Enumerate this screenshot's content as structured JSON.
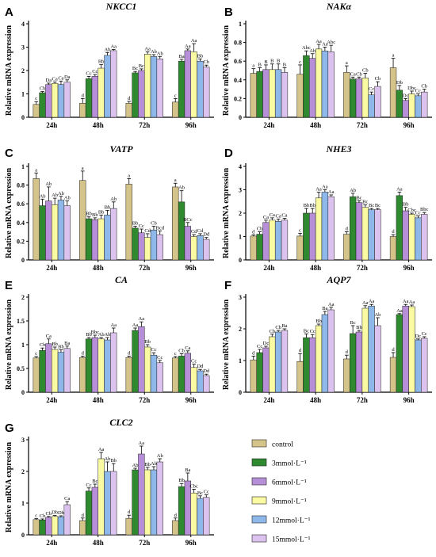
{
  "legend": {
    "items": [
      {
        "label": "control",
        "color": "#d4c48a"
      },
      {
        "label": "3mmol·L⁻¹",
        "color": "#2f8a2f"
      },
      {
        "label": "6mmol·L⁻¹",
        "color": "#b78fd8"
      },
      {
        "label": "9mmol·L⁻¹",
        "color": "#fafaa2"
      },
      {
        "label": "12mmol·L⁻¹",
        "color": "#8fb8ea"
      },
      {
        "label": "15mmol·L⁻¹",
        "color": "#dcc2ee"
      }
    ]
  },
  "chart_data": [
    {
      "panel": "A",
      "type": "bar",
      "title": "NKCC1",
      "ylabel": "Relative mRNA expression",
      "categories": [
        "24h",
        "48h",
        "72h",
        "96h"
      ],
      "ylim": [
        0,
        4
      ],
      "yticks": [
        0,
        1,
        2,
        3,
        4
      ],
      "series": [
        {
          "values": [
            0.55,
            0.6,
            0.6,
            0.65
          ],
          "errors": [
            0.12,
            0.2,
            0.08,
            0.15
          ],
          "labels": [
            "c",
            "d",
            "d",
            "c"
          ]
        },
        {
          "values": [
            1.05,
            1.65,
            1.9,
            2.4
          ],
          "errors": [
            0.05,
            0.1,
            0.06,
            0.08
          ],
          "labels": [
            "Cb",
            "Cc",
            "Bc",
            "Ba"
          ]
        },
        {
          "values": [
            1.4,
            1.75,
            2.0,
            2.85
          ],
          "errors": [
            0.06,
            0.08,
            0.07,
            0.07
          ],
          "labels": [
            "Da",
            "Cc",
            "Bc",
            "Aa"
          ]
        },
        {
          "values": [
            1.45,
            2.1,
            2.7,
            2.8
          ],
          "errors": [
            0.06,
            0.15,
            0.1,
            0.35
          ],
          "labels": [
            "Ca",
            "Bb",
            "Aa",
            "Aa"
          ]
        },
        {
          "values": [
            1.4,
            2.65,
            2.6,
            2.4
          ],
          "errors": [
            0.15,
            0.12,
            0.08,
            0.1
          ],
          "labels": [
            "Ca",
            "Ab",
            "Ab",
            "Bb"
          ]
        },
        {
          "values": [
            1.5,
            2.85,
            2.5,
            2.15
          ],
          "errors": [
            0.1,
            0.05,
            0.1,
            0.08
          ],
          "labels": [
            "Da",
            "Aa",
            "Ab",
            "Cb"
          ]
        }
      ]
    },
    {
      "panel": "B",
      "type": "bar",
      "title": "NAKα",
      "ylabel": "Relative mRNA expression",
      "categories": [
        "24h",
        "48h",
        "72h",
        "96h"
      ],
      "ylim": [
        0,
        1
      ],
      "yticks": [
        0,
        0.2,
        0.4,
        0.6,
        0.8,
        1.0
      ],
      "series": [
        {
          "values": [
            0.47,
            0.46,
            0.48,
            0.53
          ],
          "errors": [
            0.05,
            0.1,
            0.07,
            0.1
          ],
          "labels": [
            "a",
            "c",
            "a",
            "a"
          ]
        },
        {
          "values": [
            0.49,
            0.66,
            0.41,
            0.29
          ],
          "errors": [
            0.04,
            0.05,
            0.02,
            0.05
          ],
          "labels": [
            "B",
            "Abc",
            "Ca",
            "Db"
          ]
        },
        {
          "values": [
            0.51,
            0.63,
            0.41,
            0.18
          ],
          "errors": [
            0.05,
            0.05,
            0.02,
            0.02
          ],
          "labels": [
            "B",
            "Ab",
            "Cb",
            "Dc"
          ]
        },
        {
          "values": [
            0.51,
            0.73,
            0.42,
            0.25
          ],
          "errors": [
            0.06,
            0.05,
            0.05,
            0.03
          ],
          "labels": [
            "B",
            "Aa",
            "Cb",
            "Dbc"
          ]
        },
        {
          "values": [
            0.51,
            0.71,
            0.24,
            0.23
          ],
          "errors": [
            0.06,
            0.04,
            0.03,
            0.02
          ],
          "labels": [
            "B",
            "Aa",
            "Cc",
            "Cc"
          ]
        },
        {
          "values": [
            0.48,
            0.7,
            0.33,
            0.27
          ],
          "errors": [
            0.05,
            0.07,
            0.05,
            0.03
          ],
          "labels": [
            "B",
            "Abc",
            "Cb",
            "Cb"
          ]
        }
      ]
    },
    {
      "panel": "C",
      "type": "bar",
      "title": "VATP",
      "ylabel": "Relative mRNA expression",
      "categories": [
        "24h",
        "48h",
        "72h",
        "96h"
      ],
      "ylim": [
        0,
        1
      ],
      "yticks": [
        0,
        0.2,
        0.4,
        0.6,
        0.8,
        1.0
      ],
      "series": [
        {
          "values": [
            0.87,
            0.85,
            0.81,
            0.78
          ],
          "errors": [
            0.06,
            0.1,
            0.06,
            0.04
          ],
          "labels": [
            "a",
            "a",
            "a",
            "a"
          ]
        },
        {
          "values": [
            0.58,
            0.44,
            0.34,
            0.62
          ],
          "errors": [
            0.07,
            0.02,
            0.02,
            0.12
          ],
          "labels": [
            "Ab",
            "Bb",
            "Bb",
            "Ab"
          ]
        },
        {
          "values": [
            0.63,
            0.43,
            0.29,
            0.36
          ],
          "errors": [
            0.15,
            0.02,
            0.04,
            0.04
          ],
          "labels": [
            "Ab",
            "Bb",
            "Cc",
            "BCc"
          ]
        },
        {
          "values": [
            0.59,
            0.44,
            0.24,
            0.25
          ],
          "errors": [
            0.07,
            0.04,
            0.04,
            0.02
          ],
          "labels": [
            "Ab",
            "Bb",
            "Cd",
            "Cd"
          ]
        },
        {
          "values": [
            0.64,
            0.48,
            0.32,
            0.26
          ],
          "errors": [
            0.04,
            0.05,
            0.04,
            0.02
          ],
          "labels": [
            "Ab",
            "Bb",
            "Cb",
            "Cd"
          ]
        },
        {
          "values": [
            0.58,
            0.55,
            0.27,
            0.22
          ],
          "errors": [
            0.05,
            0.07,
            0.04,
            0.02
          ],
          "labels": [
            "Ab",
            "Ab",
            "Bcd",
            "Dd"
          ]
        }
      ]
    },
    {
      "panel": "D",
      "type": "bar",
      "title": "NHE3",
      "ylabel": "Relative mRNA expression",
      "categories": [
        "24h",
        "48h",
        "72h",
        "96h"
      ],
      "ylim": [
        0,
        4
      ],
      "yticks": [
        0,
        1,
        2,
        3,
        4
      ],
      "series": [
        {
          "values": [
            1.02,
            1.02,
            1.1,
            1.0
          ],
          "errors": [
            0.05,
            0.12,
            0.1,
            0.08
          ],
          "labels": [
            "d",
            "c",
            "d",
            "d"
          ]
        },
        {
          "values": [
            1.1,
            2.0,
            2.7,
            2.75
          ],
          "errors": [
            0.1,
            0.2,
            0.15,
            0.15
          ],
          "labels": [
            "Cb",
            "Bb",
            "Ab",
            "Aa"
          ]
        },
        {
          "values": [
            1.6,
            2.0,
            2.45,
            2.1
          ],
          "errors": [
            0.1,
            0.2,
            0.08,
            0.15
          ],
          "labels": [
            "Ca",
            "Bb",
            "Bc",
            "Bb"
          ]
        },
        {
          "values": [
            1.7,
            2.65,
            2.25,
            1.95
          ],
          "errors": [
            0.1,
            0.25,
            0.1,
            0.05
          ],
          "labels": [
            "Ca",
            "Aa",
            "Bc",
            "Cbc"
          ]
        },
        {
          "values": [
            1.65,
            2.9,
            2.15,
            1.8
          ],
          "errors": [
            0.1,
            0.1,
            0.05,
            0.08
          ],
          "labels": [
            "Ca",
            "Aa",
            "Bc",
            "Cc"
          ]
        },
        {
          "values": [
            1.7,
            2.7,
            2.15,
            1.95
          ],
          "errors": [
            0.08,
            0.08,
            0.05,
            0.08
          ],
          "labels": [
            "Ca",
            "Aa",
            "Bc",
            "Bbc"
          ]
        }
      ]
    },
    {
      "panel": "E",
      "type": "bar",
      "title": "CA",
      "ylabel": "Relative mRNA expression",
      "categories": [
        "24h",
        "48h",
        "72h",
        "96h"
      ],
      "ylim": [
        0,
        2
      ],
      "yticks": [
        0,
        0.5,
        1.0,
        1.5,
        2.0
      ],
      "series": [
        {
          "values": [
            0.72,
            0.73,
            0.73,
            0.72
          ],
          "errors": [
            0.03,
            0.03,
            0.03,
            0.03
          ],
          "labels": [
            "c",
            "d",
            "d",
            "c"
          ]
        },
        {
          "values": [
            0.88,
            1.12,
            1.3,
            0.76
          ],
          "errors": [
            0.05,
            0.03,
            0.05,
            0.05
          ],
          "labels": [
            "Cb",
            "Bb",
            "Aa",
            "Cb"
          ]
        },
        {
          "values": [
            1.02,
            1.15,
            1.38,
            0.82
          ],
          "errors": [
            0.1,
            0.05,
            0.1,
            0.05
          ],
          "labels": [
            "Ca",
            "Bbc",
            "Aa",
            "Ca"
          ]
        },
        {
          "values": [
            0.9,
            1.12,
            0.95,
            0.52
          ],
          "errors": [
            0.05,
            0.03,
            0.05,
            0.07
          ],
          "labels": [
            "Bb",
            "Ab",
            "Bb",
            "Cc"
          ]
        },
        {
          "values": [
            0.84,
            1.1,
            0.78,
            0.45
          ],
          "errors": [
            0.05,
            0.05,
            0.05,
            0.03
          ],
          "labels": [
            "Bb",
            "Ab",
            "Cc",
            "Dd"
          ]
        },
        {
          "values": [
            0.92,
            1.25,
            0.62,
            0.35
          ],
          "errors": [
            0.05,
            0.1,
            0.05,
            0.03
          ],
          "labels": [
            "Ba",
            "Aa",
            "Cc",
            "Dd"
          ]
        }
      ]
    },
    {
      "panel": "F",
      "type": "bar",
      "title": "AQP7",
      "ylabel": "Relative mRNA expression",
      "categories": [
        "24h",
        "48h",
        "72h",
        "96h"
      ],
      "ylim": [
        0,
        3
      ],
      "yticks": [
        0,
        1,
        2,
        3
      ],
      "series": [
        {
          "values": [
            1.02,
            0.97,
            1.05,
            1.1
          ],
          "errors": [
            0.12,
            0.25,
            0.12,
            0.15
          ],
          "labels": [
            "d",
            "d",
            "d",
            "d"
          ]
        },
        {
          "values": [
            1.25,
            1.72,
            1.85,
            2.45
          ],
          "errors": [
            0.1,
            0.12,
            0.25,
            0.03
          ],
          "labels": [
            "Cc",
            "Bc",
            "Bc",
            "Aa"
          ]
        },
        {
          "values": [
            1.4,
            1.72,
            1.9,
            2.72
          ],
          "errors": [
            0.05,
            0.1,
            0.05,
            0.05
          ],
          "labels": [
            "Dc",
            "Cc",
            "Bb",
            "Aa"
          ]
        },
        {
          "values": [
            1.75,
            2.1,
            2.65,
            2.7
          ],
          "errors": [
            0.08,
            0.05,
            0.08,
            0.05
          ],
          "labels": [
            "Cb",
            "Bb",
            "Aa",
            "Aa"
          ]
        },
        {
          "values": [
            1.9,
            2.45,
            2.72,
            1.65
          ],
          "errors": [
            0.05,
            0.1,
            0.05,
            0.03
          ],
          "labels": [
            "Cb",
            "Ba",
            "Aa",
            "Dc"
          ]
        },
        {
          "values": [
            1.95,
            2.6,
            2.1,
            1.7
          ],
          "errors": [
            0.05,
            0.08,
            0.25,
            0.05
          ],
          "labels": [
            "Ba",
            "Aa",
            "Ab",
            "Cc"
          ]
        }
      ]
    },
    {
      "panel": "G",
      "type": "bar",
      "title": "CLC2",
      "ylabel": "Relative mRNA expression",
      "categories": [
        "24h",
        "48h",
        "72h",
        "96h"
      ],
      "ylim": [
        0,
        3
      ],
      "yticks": [
        0,
        1,
        2,
        3
      ],
      "series": [
        {
          "values": [
            0.48,
            0.45,
            0.52,
            0.45
          ],
          "errors": [
            0.03,
            0.08,
            0.1,
            0.08
          ],
          "labels": [
            "c",
            "d",
            "d",
            "d"
          ]
        },
        {
          "values": [
            0.47,
            1.38,
            2.05,
            1.52
          ],
          "errors": [
            0.03,
            0.1,
            0.05,
            0.1
          ],
          "labels": [
            "Cb",
            "Cc",
            "Ab",
            "Bb"
          ]
        },
        {
          "values": [
            0.55,
            1.5,
            2.55,
            1.7
          ],
          "errors": [
            0.03,
            0.1,
            0.25,
            0.25
          ],
          "labels": [
            "Cb",
            "Bc",
            "Aa",
            "Ba"
          ]
        },
        {
          "values": [
            0.58,
            2.4,
            2.05,
            1.32
          ],
          "errors": [
            0.03,
            0.2,
            0.08,
            0.12
          ],
          "labels": [
            "Db",
            "Aa",
            "Bb",
            "Cbc"
          ]
        },
        {
          "values": [
            0.57,
            2.0,
            2.05,
            1.15
          ],
          "errors": [
            0.03,
            0.3,
            0.1,
            0.08
          ],
          "labels": [
            "Db",
            "Ab",
            "Ab",
            "Bc"
          ]
        },
        {
          "values": [
            0.95,
            2.0,
            2.3,
            1.18
          ],
          "errors": [
            0.1,
            0.25,
            0.1,
            0.08
          ],
          "labels": [
            "Ca",
            "Bb",
            "Ab",
            "Cc"
          ]
        }
      ]
    }
  ]
}
